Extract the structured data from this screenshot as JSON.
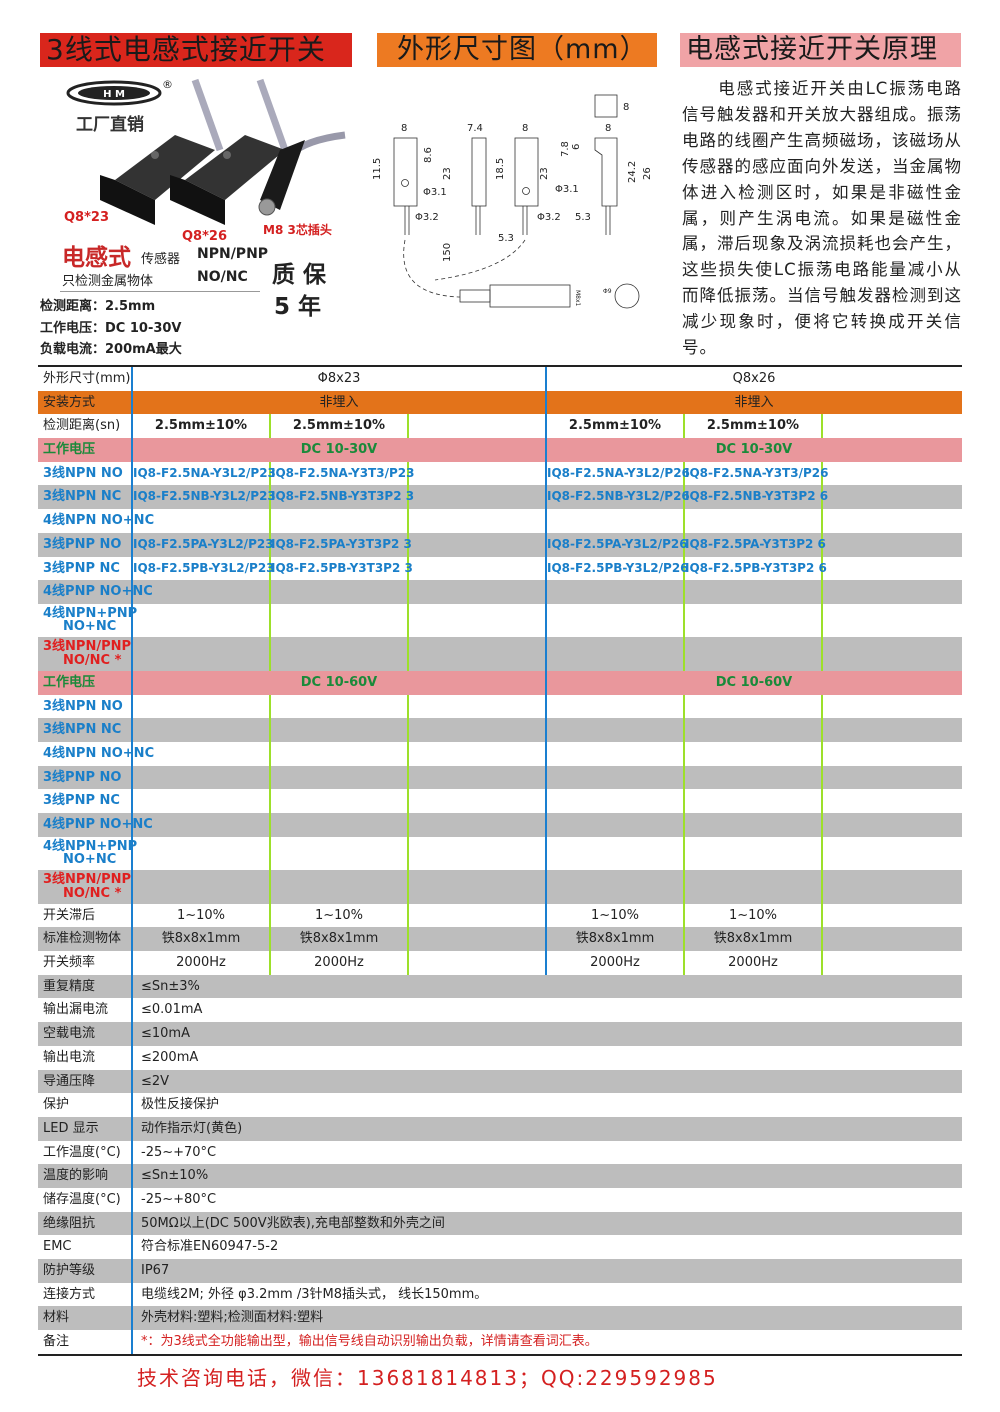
{
  "titles": {
    "left": "3线式电感式接近开关",
    "middle": "外形尺寸图（mm）",
    "right": "电感式接近开关原理"
  },
  "product": {
    "brand_tag": "工厂直销",
    "registered": "®",
    "model_a": "Q8*23",
    "model_b": "Q8*26",
    "plug": "M8 3芯插头",
    "type_big": "电感式",
    "type_small": "传感器",
    "output": "NPN/PNP",
    "metal_only": "只检测金属物体",
    "contact": "NO/NC",
    "warranty_1": "质 保",
    "warranty_2": "5 年",
    "specs": [
      "检测距离：2.5mm",
      "工作电压：DC 10-30V",
      "负载电流：200mA最大"
    ]
  },
  "diagram": {
    "dims": [
      "8",
      "7.4",
      "8",
      "8",
      "8",
      "11.5",
      "8.6",
      "23",
      "Φ3.1",
      "Φ3.2",
      "5.3",
      "18.5",
      "23",
      "7.8",
      "6",
      "Φ3.1",
      "Φ3.2",
      "5.3",
      "24.2",
      "26",
      "150",
      "M8x1",
      "Φ9"
    ]
  },
  "principle": "电感式接近开关由LC振荡电路信号触发器和开关放大器组成。振荡电路的线圈产生高频磁场，该磁场从传感器的感应面向外发送，当金属物体进入检测区时，如果是非磁性金属，则产生涡电流。如果是磁性金属，滞后现象及涡流损耗也会产生，这些损失使LC振荡电路能量减小从而降低振荡。当信号触发器检测到这减少现象时，便将它转换成开关信号。",
  "colors": {
    "title_red": "#d9261c",
    "title_orange": "#ed7a22",
    "title_pink": "#f0a3a6",
    "row_orange": "#e3731a",
    "row_pink": "#e9979c",
    "row_gray": "#bdbdbd",
    "model_blue": "#1a7fc9",
    "voltage_green": "#1a8a3a"
  },
  "table": [
    {
      "kind": "span",
      "bg": "w",
      "label": "外形尺寸(mm)",
      "values": [
        "Φ8x23",
        "Q8x26"
      ]
    },
    {
      "kind": "span",
      "bg": "o",
      "label": "安装方式",
      "values": [
        "非埋入",
        "非埋入"
      ]
    },
    {
      "kind": "cells",
      "bg": "w",
      "label": "检测距离(sn)",
      "cls": "bold",
      "values": [
        "2.5mm±10%",
        "2.5mm±10%",
        "",
        "2.5mm±10%",
        "2.5mm±10%",
        ""
      ]
    },
    {
      "kind": "span",
      "bg": "p",
      "label": "工作电压",
      "lcls": "grn",
      "cls": "grn",
      "values": [
        "DC 10-30V",
        "DC 10-30V"
      ]
    },
    {
      "kind": "cells",
      "bg": "w",
      "label": "3线NPN NO",
      "lcls": "blue",
      "cls": "model",
      "values": [
        "IQ8-F2.5NA-Y3L2/P23",
        "IQ8-F2.5NA-Y3T3/P23",
        "",
        "IQ8-F2.5NA-Y3L2/P26",
        "IQ8-F2.5NA-Y3T3/P26",
        ""
      ]
    },
    {
      "kind": "cells",
      "bg": "g",
      "label": "3线NPN NC",
      "lcls": "blue",
      "cls": "model",
      "values": [
        "IQ8-F2.5NB-Y3L2/P23",
        "IQ8-F2.5NB-Y3T3P2 3",
        "",
        "IQ8-F2.5NB-Y3L2/P26",
        "IQ8-F2.5NB-Y3T3P2 6",
        ""
      ]
    },
    {
      "kind": "cells",
      "bg": "w",
      "label": "4线NPN NO+NC",
      "lcls": "blue",
      "values": [
        "",
        "",
        "",
        "",
        "",
        ""
      ]
    },
    {
      "kind": "cells",
      "bg": "g",
      "label": "3线PNP NO",
      "lcls": "blue",
      "cls": "model",
      "values": [
        "IQ8-F2.5PA-Y3L2/P23",
        "IQ8-F2.5PA-Y3T3P2 3",
        "",
        "IQ8-F2.5PA-Y3L2/P26",
        "IQ8-F2.5PA-Y3T3P2 6",
        ""
      ]
    },
    {
      "kind": "cells",
      "bg": "w",
      "label": "3线PNP NC",
      "lcls": "blue",
      "cls": "model",
      "values": [
        "IQ8-F2.5PB-Y3L2/P23",
        "IQ8-F2.5PB-Y3T3P2 3",
        "",
        "IQ8-F2.5PB-Y3L2/P26",
        "IQ8-F2.5PB-Y3T3P2 6",
        ""
      ]
    },
    {
      "kind": "cells",
      "bg": "g",
      "label": "4线PNP NO+NC",
      "lcls": "blue",
      "values": [
        "",
        "",
        "",
        "",
        "",
        ""
      ]
    },
    {
      "kind": "cells",
      "bg": "w",
      "tall": true,
      "label": "4线NPN+PNP",
      "label2": "NO+NC",
      "lcls": "blue",
      "values": [
        "",
        "",
        "",
        "",
        "",
        ""
      ]
    },
    {
      "kind": "cells",
      "bg": "g",
      "tall": true,
      "label": "3线NPN/PNP",
      "label2": "NO/NC *",
      "lcls": "rd",
      "values": [
        "",
        "",
        "",
        "",
        "",
        ""
      ]
    },
    {
      "kind": "span",
      "bg": "p",
      "label": "工作电压",
      "lcls": "grn",
      "cls": "grn",
      "values": [
        "DC 10-60V",
        "DC 10-60V"
      ]
    },
    {
      "kind": "cells",
      "bg": "w",
      "label": "3线NPN NO",
      "lcls": "blue",
      "values": [
        "",
        "",
        "",
        "",
        "",
        ""
      ]
    },
    {
      "kind": "cells",
      "bg": "g",
      "label": "3线NPN NC",
      "lcls": "blue",
      "values": [
        "",
        "",
        "",
        "",
        "",
        ""
      ]
    },
    {
      "kind": "cells",
      "bg": "w",
      "label": "4线NPN NO+NC",
      "lcls": "blue",
      "values": [
        "",
        "",
        "",
        "",
        "",
        ""
      ]
    },
    {
      "kind": "cells",
      "bg": "g",
      "label": "3线PNP NO",
      "lcls": "blue",
      "values": [
        "",
        "",
        "",
        "",
        "",
        ""
      ]
    },
    {
      "kind": "cells",
      "bg": "w",
      "label": "3线PNP NC",
      "lcls": "blue",
      "values": [
        "",
        "",
        "",
        "",
        "",
        ""
      ]
    },
    {
      "kind": "cells",
      "bg": "g",
      "label": "4线PNP NO+NC",
      "lcls": "blue",
      "values": [
        "",
        "",
        "",
        "",
        "",
        ""
      ]
    },
    {
      "kind": "cells",
      "bg": "w",
      "tall": true,
      "label": "4线NPN+PNP",
      "label2": "NO+NC",
      "lcls": "blue",
      "values": [
        "",
        "",
        "",
        "",
        "",
        ""
      ]
    },
    {
      "kind": "cells",
      "bg": "g",
      "tall": true,
      "label": "3线NPN/PNP",
      "label2": "NO/NC *",
      "lcls": "rd",
      "values": [
        "",
        "",
        "",
        "",
        "",
        ""
      ]
    },
    {
      "kind": "cells",
      "bg": "w",
      "label": "开关滞后",
      "values": [
        "1~10%",
        "1~10%",
        "",
        "1~10%",
        "1~10%",
        ""
      ]
    },
    {
      "kind": "cells",
      "bg": "g",
      "label": "标准检测物体",
      "values": [
        "铁8x8x1mm",
        "铁8x8x1mm",
        "",
        "铁8x8x1mm",
        "铁8x8x1mm",
        ""
      ]
    },
    {
      "kind": "cells",
      "bg": "w",
      "label": "开关频率",
      "values": [
        "2000Hz",
        "2000Hz",
        "",
        "2000Hz",
        "2000Hz",
        ""
      ]
    },
    {
      "kind": "full",
      "bg": "g",
      "label": "重复精度",
      "value": "≤Sn±3%"
    },
    {
      "kind": "full",
      "bg": "w",
      "label": "输出漏电流",
      "value": "≤0.01mA"
    },
    {
      "kind": "full",
      "bg": "g",
      "label": "空载电流",
      "value": "≤10mA"
    },
    {
      "kind": "full",
      "bg": "w",
      "label": "输出电流",
      "value": "≤200mA"
    },
    {
      "kind": "full",
      "bg": "g",
      "label": "导通压降",
      "value": "≤2V"
    },
    {
      "kind": "full",
      "bg": "w",
      "label": "保护",
      "value": "极性反接保护"
    },
    {
      "kind": "full",
      "bg": "g",
      "label": "LED 显示",
      "value": "动作指示灯(黄色)"
    },
    {
      "kind": "full",
      "bg": "w",
      "label": "工作温度(°C)",
      "value": "-25~+70°C"
    },
    {
      "kind": "full",
      "bg": "g",
      "label": "温度的影响",
      "value": "≤Sn±10%"
    },
    {
      "kind": "full",
      "bg": "w",
      "label": "储存温度(°C)",
      "value": "-25~+80°C"
    },
    {
      "kind": "full",
      "bg": "g",
      "label": "绝缘阻抗",
      "value": "50MΩ以上(DC 500V兆欧表),充电部整数和外壳之间"
    },
    {
      "kind": "full",
      "bg": "w",
      "label": "EMC",
      "value": "符合标准EN60947-5-2"
    },
    {
      "kind": "full",
      "bg": "g",
      "label": "防护等级",
      "value": "IP67"
    },
    {
      "kind": "full",
      "bg": "w",
      "label": "连接方式",
      "value": "电缆线2M; 外径 φ3.2mm /3针M8插头式， 线长150mm。"
    },
    {
      "kind": "full",
      "bg": "g",
      "label": "材料",
      "value": "外壳材料:塑料;检测面材料:塑料"
    },
    {
      "kind": "full",
      "bg": "w",
      "label": "备注",
      "value": "*：为3线式全功能输出型，输出信号线自动识别输出负载，详情请查看词汇表。",
      "cls": "red"
    }
  ],
  "footer": "技术咨询电话，微信：13681814813；QQ:229592985"
}
